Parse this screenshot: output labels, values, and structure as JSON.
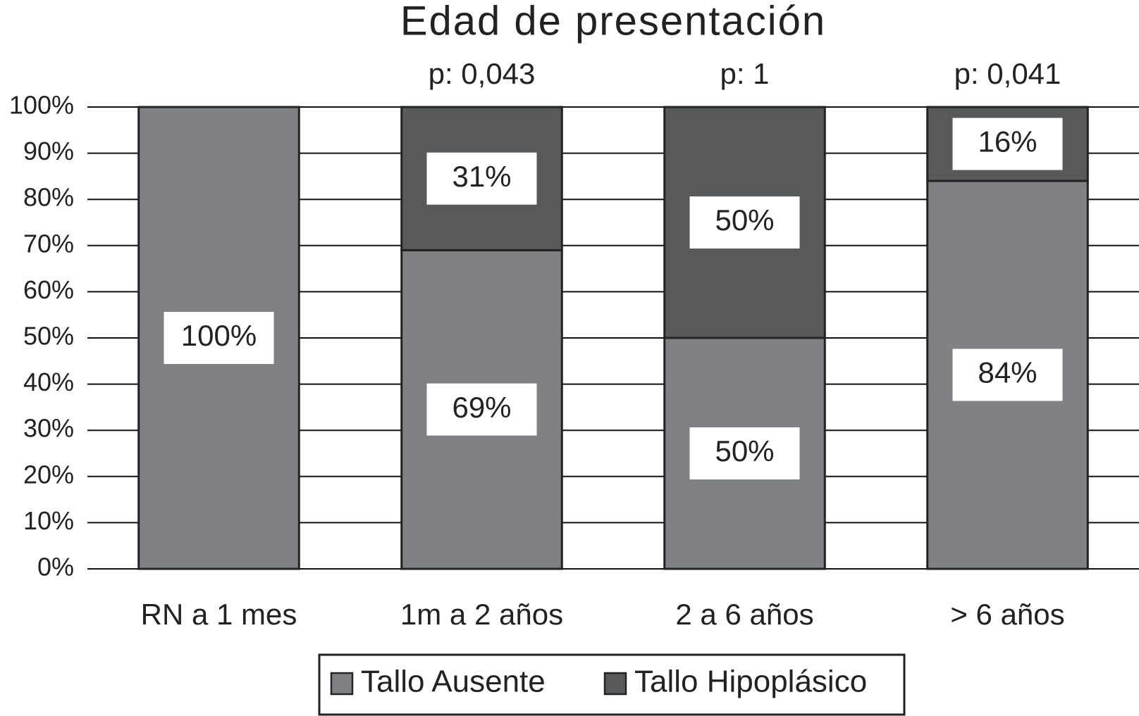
{
  "chart_data": {
    "type": "stacked_bar",
    "title": "Edad de presentación",
    "categories": [
      "RN a 1 mes",
      "1m a 2 años",
      "2 a 6 años",
      "> 6 años"
    ],
    "p_values": [
      null,
      "p: 0,043",
      "p: 1",
      "p: 0,041"
    ],
    "series": [
      {
        "name": "Tallo Ausente",
        "color": "#808184",
        "values": [
          100,
          69,
          50,
          84
        ],
        "value_labels": [
          "100%",
          "69%",
          "50%",
          "84%"
        ]
      },
      {
        "name": "Tallo Hipoplásico",
        "color": "#58595b",
        "values": [
          0,
          31,
          50,
          16
        ],
        "value_labels": [
          null,
          "31%",
          "50%",
          "16%"
        ]
      }
    ],
    "ylim": [
      0,
      100
    ],
    "yticks": [
      {
        "value": 0,
        "label": "0%"
      },
      {
        "value": 10,
        "label": "10%"
      },
      {
        "value": 20,
        "label": "20%"
      },
      {
        "value": 30,
        "label": "30%"
      },
      {
        "value": 40,
        "label": "40%"
      },
      {
        "value": 50,
        "label": "50%"
      },
      {
        "value": 60,
        "label": "60%"
      },
      {
        "value": 70,
        "label": "70%"
      },
      {
        "value": 80,
        "label": "80%"
      },
      {
        "value": 90,
        "label": "90%"
      },
      {
        "value": 100,
        "label": "100%"
      }
    ],
    "grid": true,
    "legend": "bottom"
  }
}
